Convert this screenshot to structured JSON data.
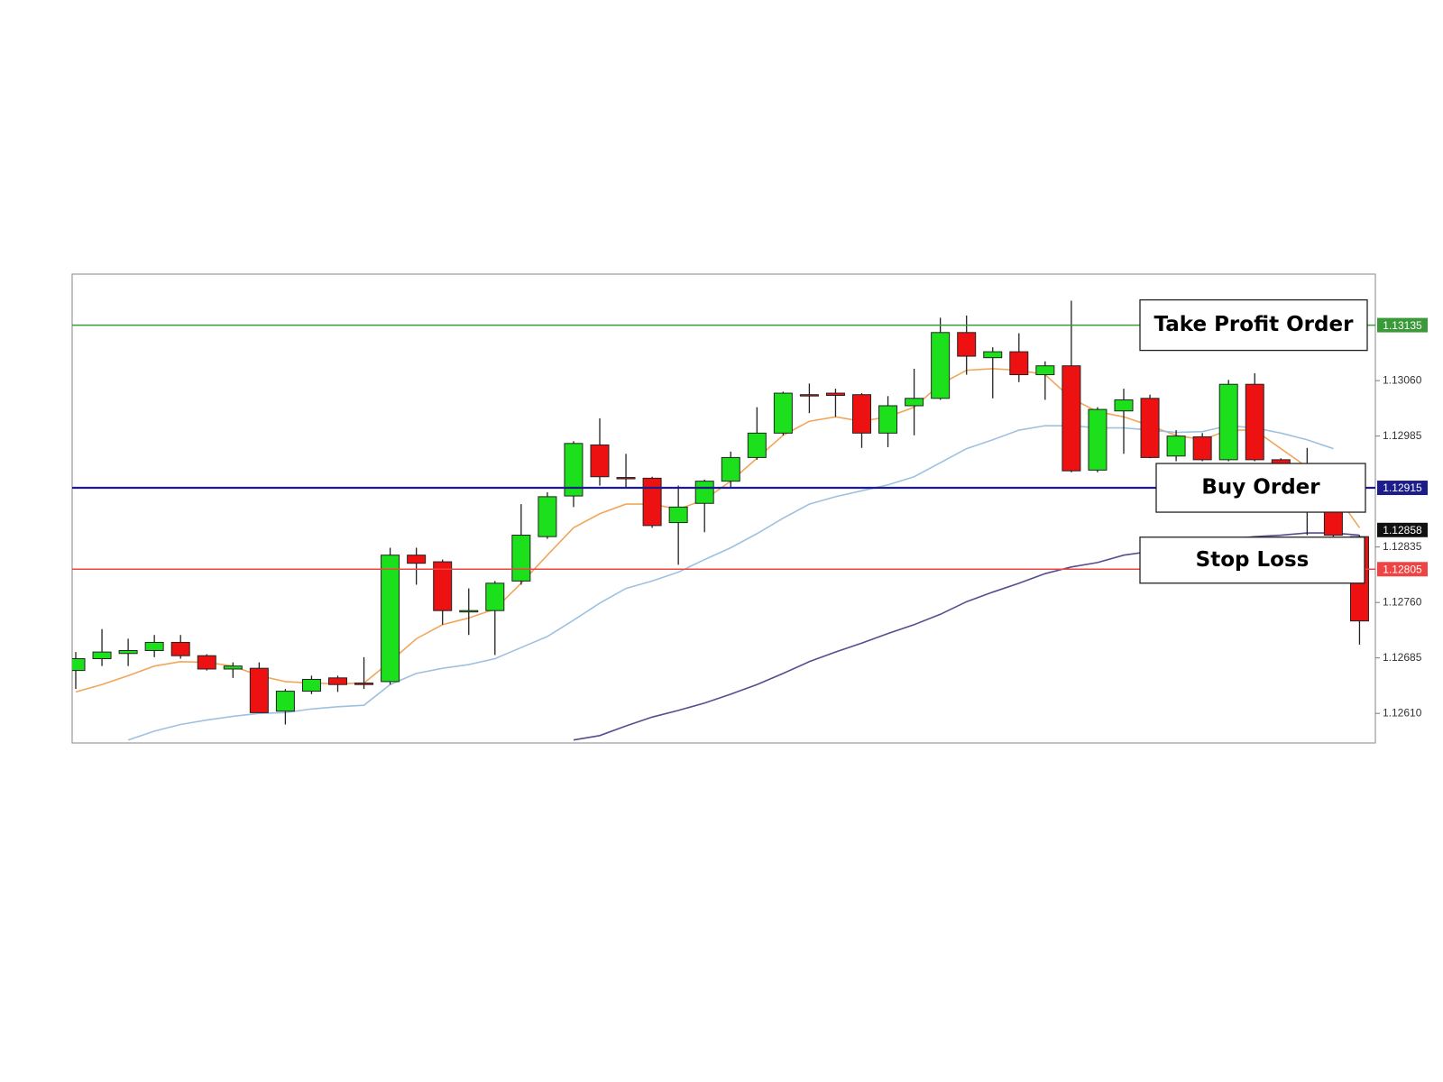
{
  "chart_data": {
    "type": "candlestick",
    "up_color": "#1be01b",
    "down_color": "#ee1111",
    "open": [
      1.12668,
      1.12684,
      1.12691,
      1.12695,
      1.12706,
      1.12688,
      1.1267,
      1.12671,
      1.12613,
      1.1264,
      1.12658,
      1.12651,
      1.12653,
      1.12824,
      1.12815,
      1.12748,
      1.12749,
      1.12789,
      1.12849,
      1.12904,
      1.12973,
      1.12929,
      1.12928,
      1.12868,
      1.12894,
      1.12924,
      1.12956,
      1.12989,
      1.13041,
      1.13043,
      1.13041,
      1.12989,
      1.13026,
      1.13036,
      1.13125,
      1.13091,
      1.13099,
      1.13068,
      1.1308,
      1.12939,
      1.13019,
      1.13036,
      1.12958,
      1.12984,
      1.12953,
      1.13055,
      1.12953,
      1.12924,
      1.12889,
      1.12849
    ],
    "high": [
      1.12693,
      1.12724,
      1.12711,
      1.12716,
      1.12716,
      1.1269,
      1.12679,
      1.12679,
      1.12643,
      1.12661,
      1.12661,
      1.12686,
      1.12834,
      1.12834,
      1.12818,
      1.12779,
      1.12789,
      1.12893,
      1.12909,
      1.12978,
      1.13009,
      1.12961,
      1.1293,
      1.12918,
      1.12926,
      1.12964,
      1.13024,
      1.13045,
      1.13056,
      1.13049,
      1.13043,
      1.13039,
      1.13076,
      1.13145,
      1.13148,
      1.13105,
      1.13124,
      1.13086,
      1.13168,
      1.13024,
      1.13049,
      1.13041,
      1.12993,
      1.12989,
      1.13061,
      1.1307,
      1.12955,
      1.12969,
      1.12893,
      1.12851
    ],
    "low": [
      1.12643,
      1.12674,
      1.12674,
      1.12686,
      1.12684,
      1.12668,
      1.12658,
      1.12611,
      1.12595,
      1.12636,
      1.12639,
      1.12643,
      1.12649,
      1.12784,
      1.1273,
      1.12716,
      1.12689,
      1.12784,
      1.12846,
      1.12889,
      1.12918,
      1.12914,
      1.12861,
      1.12811,
      1.12855,
      1.12914,
      1.12953,
      1.12986,
      1.13016,
      1.13011,
      1.12969,
      1.1297,
      1.12986,
      1.13034,
      1.13068,
      1.13036,
      1.13058,
      1.13034,
      1.12936,
      1.12936,
      1.12961,
      1.12955,
      1.12951,
      1.12951,
      1.12951,
      1.12951,
      1.12914,
      1.12851,
      1.12849,
      1.12703
    ],
    "close": [
      1.12684,
      1.12693,
      1.12695,
      1.12706,
      1.12688,
      1.1267,
      1.12674,
      1.12611,
      1.1264,
      1.12656,
      1.12649,
      1.12649,
      1.12824,
      1.12813,
      1.12749,
      1.12749,
      1.12786,
      1.12851,
      1.12903,
      1.12975,
      1.1293,
      1.12928,
      1.12864,
      1.12889,
      1.12924,
      1.12956,
      1.12989,
      1.13043,
      1.1304,
      1.1304,
      1.12989,
      1.13026,
      1.13036,
      1.13125,
      1.13093,
      1.13099,
      1.13068,
      1.1308,
      1.12938,
      1.13021,
      1.13034,
      1.12956,
      1.12985,
      1.12953,
      1.13055,
      1.12953,
      1.12924,
      1.12883,
      1.12851,
      1.12735
    ],
    "series": [
      {
        "color": "#f2a65a",
        "values": [
          1.12639,
          1.12649,
          1.12661,
          1.12674,
          1.1268,
          1.12679,
          1.12674,
          1.12661,
          1.12653,
          1.12651,
          1.1265,
          1.12651,
          1.1268,
          1.12711,
          1.1273,
          1.12739,
          1.12751,
          1.12786,
          1.12824,
          1.12861,
          1.1288,
          1.12893,
          1.12893,
          1.12886,
          1.12899,
          1.12924,
          1.12955,
          1.12986,
          1.13005,
          1.13011,
          1.13005,
          1.13011,
          1.13024,
          1.13055,
          1.13074,
          1.13076,
          1.13074,
          1.13068,
          1.13036,
          1.13018,
          1.13011,
          1.12999,
          1.12986,
          1.1298,
          1.12993,
          1.12993,
          1.12968,
          1.12943,
          1.12911,
          1.12861
        ]
      },
      {
        "color": "#9ec1e0",
        "values": [
          null,
          null,
          1.12574,
          1.12586,
          1.12595,
          1.12601,
          1.12606,
          1.1261,
          1.12611,
          1.12616,
          1.12619,
          1.12621,
          1.12649,
          1.12664,
          1.12671,
          1.12676,
          1.12684,
          1.12699,
          1.12714,
          1.12736,
          1.12759,
          1.12779,
          1.12789,
          1.12801,
          1.12818,
          1.12834,
          1.12853,
          1.12874,
          1.12893,
          1.12903,
          1.12911,
          1.12919,
          1.1293,
          1.12949,
          1.12968,
          1.1298,
          1.12993,
          1.12999,
          1.12999,
          1.12996,
          1.12996,
          1.12993,
          1.1299,
          1.12991,
          1.12999,
          1.12996,
          1.12989,
          1.1298,
          1.12968,
          null
        ]
      },
      {
        "color": "#5b4a8f",
        "values": [
          null,
          null,
          null,
          null,
          null,
          null,
          null,
          null,
          null,
          null,
          null,
          null,
          null,
          null,
          null,
          null,
          null,
          null,
          null,
          1.12574,
          1.1258,
          1.12593,
          1.12605,
          1.12614,
          1.12624,
          1.12636,
          1.12649,
          1.12664,
          1.1268,
          1.12693,
          1.12705,
          1.12718,
          1.1273,
          1.12744,
          1.12761,
          1.12774,
          1.12786,
          1.12799,
          1.12808,
          1.12814,
          1.12824,
          1.12829,
          1.12836,
          1.12841,
          1.12846,
          1.12849,
          1.12851,
          1.12854,
          1.12854,
          1.12851
        ]
      }
    ],
    "levels": [
      {
        "value": 1.13135,
        "color": "#3a9a3a",
        "annotation": "Take Profit Order"
      },
      {
        "value": 1.12915,
        "color": "#1c1c8a",
        "annotation": "Buy Order"
      },
      {
        "value": 1.12805,
        "color": "#ee4444",
        "annotation": "Stop Loss"
      }
    ],
    "price_tag": {
      "value": 1.12858,
      "color": "#111111"
    },
    "ylim": [
      1.1257,
      1.13204
    ],
    "yticks": [
      {
        "value": 1.1261,
        "label": "1.12610"
      },
      1.12685,
      {
        "value": 1.1276,
        "label": "1.12760"
      },
      1.12835,
      1.12985,
      {
        "value": 1.1306,
        "label": "1.13060"
      }
    ],
    "grid": false
  }
}
